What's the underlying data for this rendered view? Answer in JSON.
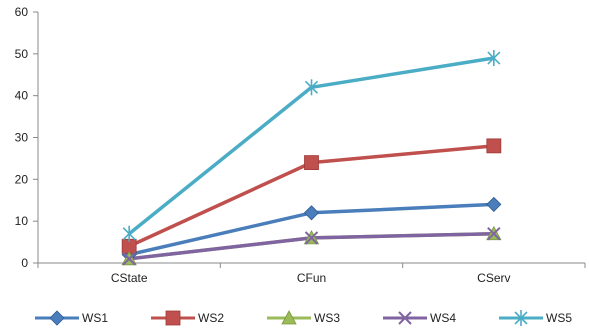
{
  "chart_data": {
    "type": "line",
    "title": "",
    "xlabel": "",
    "ylabel": "",
    "categories": [
      "CState",
      "CFun",
      "CServ"
    ],
    "ylim": [
      0,
      60
    ],
    "yticks": [
      0,
      10,
      20,
      30,
      40,
      50,
      60
    ],
    "grid": false,
    "legend_position": "bottom",
    "series": [
      {
        "name": "WS1",
        "values": [
          2,
          12,
          14
        ],
        "color": "#4a7ebb",
        "marker": "diamond"
      },
      {
        "name": "WS2",
        "values": [
          4,
          24,
          28
        ],
        "color": "#c0504d",
        "marker": "square"
      },
      {
        "name": "WS3",
        "values": [
          1,
          6,
          7
        ],
        "color": "#9bbb59",
        "marker": "triangle"
      },
      {
        "name": "WS4",
        "values": [
          1,
          6,
          7
        ],
        "color": "#8064a2",
        "marker": "x"
      },
      {
        "name": "WS5",
        "values": [
          7,
          42,
          49
        ],
        "color": "#4bacc6",
        "marker": "star"
      }
    ]
  }
}
